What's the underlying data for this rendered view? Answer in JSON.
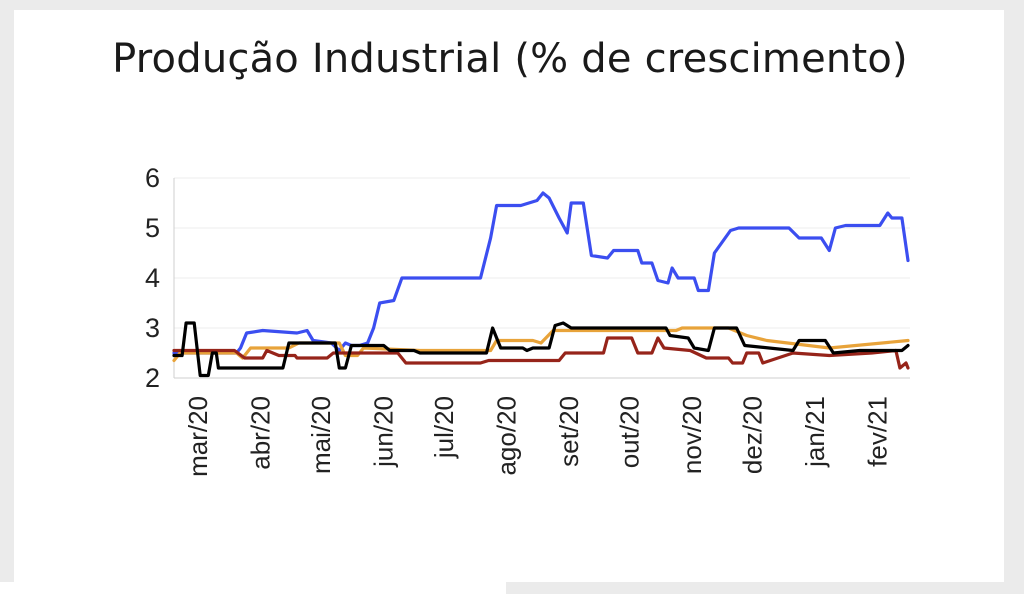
{
  "chart_data": {
    "type": "line",
    "title": "Produção Industrial (% de crescimento)",
    "xlabel": "",
    "ylabel": "",
    "ylim": [
      2,
      6
    ],
    "yticks": [
      2,
      3,
      4,
      5,
      6
    ],
    "xlim": [
      "2020-03-01",
      "2021-02-28"
    ],
    "categories": [
      "mar/20",
      "abr/20",
      "mai/20",
      "jun/20",
      "jul/20",
      "ago/20",
      "set/20",
      "out/20",
      "nov/20",
      "dez/20",
      "jan/21",
      "fev/21"
    ],
    "grid": true,
    "legend": "none",
    "series": [
      {
        "color": "#3b4ef0",
        "points": [
          [
            "2020-03-01",
            2.5
          ],
          [
            "2020-04-01",
            2.5
          ],
          [
            "2020-04-03",
            2.6
          ],
          [
            "2020-04-06",
            2.9
          ],
          [
            "2020-04-14",
            2.95
          ],
          [
            "2020-05-01",
            2.9
          ],
          [
            "2020-05-06",
            2.95
          ],
          [
            "2020-05-09",
            2.75
          ],
          [
            "2020-05-18",
            2.7
          ],
          [
            "2020-05-22",
            2.55
          ],
          [
            "2020-05-25",
            2.7
          ],
          [
            "2020-05-28",
            2.65
          ],
          [
            "2020-06-01",
            2.65
          ],
          [
            "2020-06-05",
            2.7
          ],
          [
            "2020-06-08",
            3.0
          ],
          [
            "2020-06-11",
            3.5
          ],
          [
            "2020-06-18",
            3.55
          ],
          [
            "2020-06-22",
            4.0
          ],
          [
            "2020-07-31",
            4.0
          ],
          [
            "2020-08-05",
            4.8
          ],
          [
            "2020-08-08",
            5.45
          ],
          [
            "2020-08-20",
            5.45
          ],
          [
            "2020-08-24",
            5.5
          ],
          [
            "2020-08-28",
            5.55
          ],
          [
            "2020-08-31",
            5.7
          ],
          [
            "2020-09-03",
            5.6
          ],
          [
            "2020-09-08",
            5.2
          ],
          [
            "2020-09-12",
            4.9
          ],
          [
            "2020-09-14",
            5.5
          ],
          [
            "2020-09-20",
            5.5
          ],
          [
            "2020-09-24",
            4.45
          ],
          [
            "2020-10-02",
            4.4
          ],
          [
            "2020-10-05",
            4.55
          ],
          [
            "2020-10-17",
            4.55
          ],
          [
            "2020-10-19",
            4.3
          ],
          [
            "2020-10-24",
            4.3
          ],
          [
            "2020-10-27",
            3.95
          ],
          [
            "2020-11-01",
            3.9
          ],
          [
            "2020-11-03",
            4.2
          ],
          [
            "2020-11-06",
            4.0
          ],
          [
            "2020-11-14",
            4.0
          ],
          [
            "2020-11-16",
            3.75
          ],
          [
            "2020-11-21",
            3.75
          ],
          [
            "2020-11-24",
            4.5
          ],
          [
            "2020-12-02",
            4.95
          ],
          [
            "2020-12-06",
            5.0
          ],
          [
            "2020-12-31",
            5.0
          ],
          [
            "2021-01-05",
            4.8
          ],
          [
            "2021-01-16",
            4.8
          ],
          [
            "2021-01-20",
            4.55
          ],
          [
            "2021-01-23",
            5.0
          ],
          [
            "2021-01-28",
            5.05
          ],
          [
            "2021-02-14",
            5.05
          ],
          [
            "2021-02-18",
            5.3
          ],
          [
            "2021-02-20",
            5.2
          ],
          [
            "2021-02-25",
            5.2
          ],
          [
            "2021-02-28",
            4.35
          ]
        ]
      },
      {
        "color": "#e8a33a",
        "points": [
          [
            "2020-03-01",
            2.35
          ],
          [
            "2020-03-04",
            2.5
          ],
          [
            "2020-04-01",
            2.5
          ],
          [
            "2020-04-04",
            2.4
          ],
          [
            "2020-04-08",
            2.6
          ],
          [
            "2020-04-27",
            2.6
          ],
          [
            "2020-05-02",
            2.7
          ],
          [
            "2020-05-22",
            2.7
          ],
          [
            "2020-05-25",
            2.45
          ],
          [
            "2020-05-31",
            2.45
          ],
          [
            "2020-06-03",
            2.6
          ],
          [
            "2020-07-01",
            2.55
          ],
          [
            "2020-08-05",
            2.55
          ],
          [
            "2020-08-08",
            2.75
          ],
          [
            "2020-08-26",
            2.75
          ],
          [
            "2020-08-30",
            2.7
          ],
          [
            "2020-09-05",
            2.95
          ],
          [
            "2020-11-05",
            2.95
          ],
          [
            "2020-11-08",
            3.0
          ],
          [
            "2020-12-01",
            3.0
          ],
          [
            "2020-12-10",
            2.85
          ],
          [
            "2020-12-20",
            2.75
          ],
          [
            "2021-01-20",
            2.6
          ],
          [
            "2021-02-28",
            2.75
          ]
        ]
      },
      {
        "color": "#96241a",
        "points": [
          [
            "2020-03-01",
            2.55
          ],
          [
            "2020-03-31",
            2.55
          ],
          [
            "2020-04-05",
            2.4
          ],
          [
            "2020-04-14",
            2.4
          ],
          [
            "2020-04-16",
            2.55
          ],
          [
            "2020-04-22",
            2.45
          ],
          [
            "2020-04-30",
            2.45
          ],
          [
            "2020-05-01",
            2.4
          ],
          [
            "2020-05-16",
            2.4
          ],
          [
            "2020-05-19",
            2.5
          ],
          [
            "2020-06-20",
            2.5
          ],
          [
            "2020-06-24",
            2.3
          ],
          [
            "2020-07-31",
            2.3
          ],
          [
            "2020-08-04",
            2.35
          ],
          [
            "2020-09-08",
            2.35
          ],
          [
            "2020-09-11",
            2.5
          ],
          [
            "2020-09-30",
            2.5
          ],
          [
            "2020-10-02",
            2.8
          ],
          [
            "2020-10-14",
            2.8
          ],
          [
            "2020-10-17",
            2.5
          ],
          [
            "2020-10-24",
            2.5
          ],
          [
            "2020-10-27",
            2.8
          ],
          [
            "2020-10-30",
            2.6
          ],
          [
            "2020-11-12",
            2.55
          ],
          [
            "2020-11-20",
            2.4
          ],
          [
            "2020-12-01",
            2.4
          ],
          [
            "2020-12-03",
            2.3
          ],
          [
            "2020-12-08",
            2.3
          ],
          [
            "2020-12-10",
            2.5
          ],
          [
            "2020-12-16",
            2.5
          ],
          [
            "2020-12-18",
            2.3
          ],
          [
            "2021-01-02",
            2.5
          ],
          [
            "2021-01-20",
            2.45
          ],
          [
            "2021-02-10",
            2.5
          ],
          [
            "2021-02-22",
            2.55
          ],
          [
            "2021-02-24",
            2.2
          ],
          [
            "2021-02-27",
            2.3
          ],
          [
            "2021-02-28",
            2.2
          ]
        ]
      },
      {
        "color": "#000000",
        "points": [
          [
            "2020-03-01",
            2.45
          ],
          [
            "2020-03-05",
            2.45
          ],
          [
            "2020-03-07",
            3.1
          ],
          [
            "2020-03-11",
            3.1
          ],
          [
            "2020-03-14",
            2.05
          ],
          [
            "2020-03-18",
            2.05
          ],
          [
            "2020-03-20",
            2.5
          ],
          [
            "2020-03-22",
            2.5
          ],
          [
            "2020-03-23",
            2.2
          ],
          [
            "2020-04-24",
            2.2
          ],
          [
            "2020-04-27",
            2.7
          ],
          [
            "2020-05-20",
            2.7
          ],
          [
            "2020-05-22",
            2.2
          ],
          [
            "2020-05-25",
            2.2
          ],
          [
            "2020-05-28",
            2.65
          ],
          [
            "2020-06-13",
            2.65
          ],
          [
            "2020-06-16",
            2.55
          ],
          [
            "2020-06-28",
            2.55
          ],
          [
            "2020-07-01",
            2.5
          ],
          [
            "2020-07-31",
            2.5
          ],
          [
            "2020-08-03",
            2.5
          ],
          [
            "2020-08-06",
            3.0
          ],
          [
            "2020-08-10",
            2.6
          ],
          [
            "2020-08-21",
            2.6
          ],
          [
            "2020-08-23",
            2.55
          ],
          [
            "2020-08-26",
            2.6
          ],
          [
            "2020-09-03",
            2.6
          ],
          [
            "2020-09-06",
            3.05
          ],
          [
            "2020-09-10",
            3.1
          ],
          [
            "2020-09-14",
            3.0
          ],
          [
            "2020-10-31",
            3.0
          ],
          [
            "2020-11-02",
            2.85
          ],
          [
            "2020-11-11",
            2.8
          ],
          [
            "2020-11-14",
            2.6
          ],
          [
            "2020-11-21",
            2.55
          ],
          [
            "2020-11-24",
            3.0
          ],
          [
            "2020-12-05",
            3.0
          ],
          [
            "2020-12-09",
            2.65
          ],
          [
            "2021-01-02",
            2.55
          ],
          [
            "2021-01-05",
            2.75
          ],
          [
            "2021-01-18",
            2.75
          ],
          [
            "2021-01-22",
            2.5
          ],
          [
            "2021-02-04",
            2.55
          ],
          [
            "2021-02-25",
            2.55
          ],
          [
            "2021-02-28",
            2.65
          ]
        ]
      }
    ]
  }
}
